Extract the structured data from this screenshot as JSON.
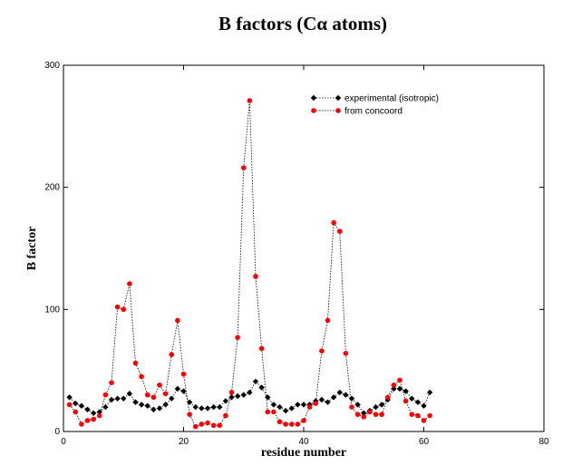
{
  "chart_data": {
    "type": "line",
    "title": "B factors (Cα atoms)",
    "xlabel": "residue number",
    "ylabel": "B factor",
    "xlim": [
      0,
      80
    ],
    "ylim": [
      0,
      300
    ],
    "xticks": [
      0,
      20,
      40,
      60,
      80
    ],
    "yticks": [
      0,
      100,
      200,
      300
    ],
    "grid": false,
    "legend_position": "top-right",
    "series": [
      {
        "name": "experimental (isotropic)",
        "color": "#000000",
        "marker": "diamond",
        "line_style": "dotted",
        "x": [
          1,
          2,
          3,
          4,
          5,
          6,
          7,
          8,
          9,
          10,
          11,
          12,
          13,
          14,
          15,
          16,
          17,
          18,
          19,
          20,
          21,
          22,
          23,
          24,
          25,
          26,
          27,
          28,
          29,
          30,
          31,
          32,
          33,
          34,
          35,
          36,
          37,
          38,
          39,
          40,
          41,
          42,
          43,
          44,
          45,
          46,
          47,
          48,
          49,
          50,
          51,
          52,
          53,
          54,
          55,
          56,
          57,
          58,
          59,
          60,
          61
        ],
        "y": [
          28,
          23,
          21,
          18,
          15,
          16,
          20,
          26,
          27,
          27,
          31,
          24,
          22,
          21,
          18,
          19,
          22,
          27,
          35,
          33,
          24,
          20,
          19,
          19,
          20,
          20,
          25,
          28,
          29,
          30,
          32,
          41,
          36,
          28,
          22,
          20,
          17,
          19,
          22,
          22,
          22,
          25,
          26,
          24,
          28,
          32,
          30,
          27,
          22,
          15,
          17,
          20,
          22,
          26,
          35,
          35,
          33,
          27,
          24,
          21,
          32
        ]
      },
      {
        "name": "from concoord",
        "color": "#ff0000",
        "marker": "circle",
        "line_style": "dotted",
        "x": [
          1,
          2,
          3,
          4,
          5,
          6,
          7,
          8,
          9,
          10,
          11,
          12,
          13,
          14,
          15,
          16,
          17,
          18,
          19,
          20,
          21,
          22,
          23,
          24,
          25,
          26,
          27,
          28,
          29,
          30,
          31,
          32,
          33,
          34,
          35,
          36,
          37,
          38,
          39,
          40,
          41,
          42,
          43,
          44,
          45,
          46,
          47,
          48,
          49,
          50,
          51,
          52,
          53,
          54,
          55,
          56,
          57,
          58,
          59,
          60,
          61
        ],
        "y": [
          22,
          16,
          6,
          9,
          10,
          13,
          30,
          40,
          102,
          100,
          121,
          56,
          45,
          30,
          28,
          38,
          31,
          63,
          91,
          47,
          14,
          4,
          6,
          7,
          5,
          5,
          13,
          32,
          77,
          216,
          271,
          127,
          68,
          16,
          16,
          8,
          6,
          6,
          6,
          9,
          20,
          23,
          66,
          91,
          171,
          164,
          64,
          20,
          14,
          12,
          16,
          14,
          14,
          28,
          38,
          42,
          25,
          14,
          13,
          9,
          13
        ]
      }
    ]
  }
}
